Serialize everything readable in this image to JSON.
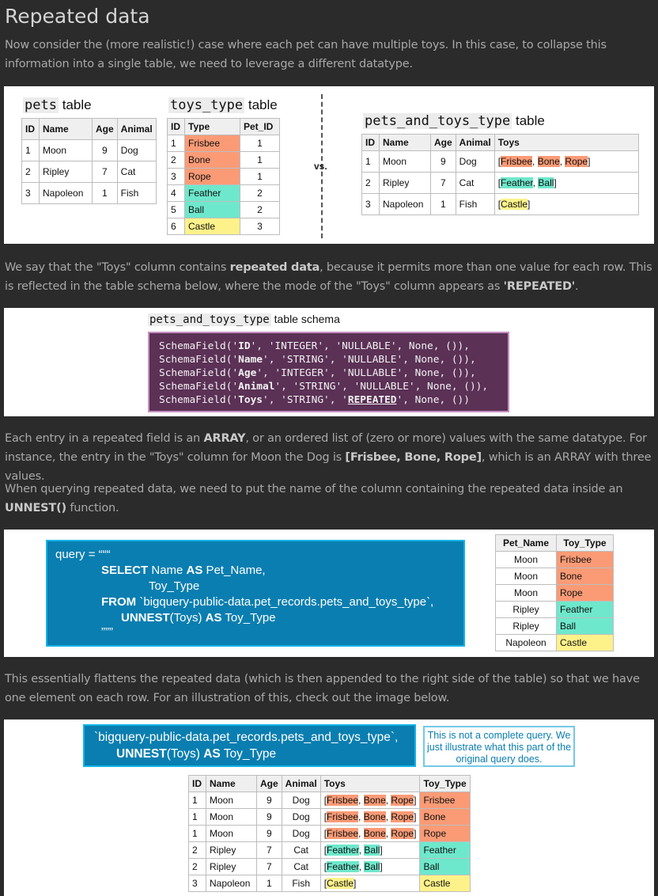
{
  "title": "Repeated data",
  "intro": "Now consider the (more realistic!) case where each pet can have multiple toys. In this case, to collapse this information into a single table, we need to leverage a different datatype.",
  "fig1": {
    "pets_caption_code": "pets",
    "toys_caption_code": "toys_type",
    "table_word": "table",
    "vs": "vs.",
    "result_caption_code": "pets_and_toys_type",
    "pets_headers": [
      "ID",
      "Name",
      "Age",
      "Animal"
    ],
    "pets_rows": [
      [
        "1",
        "Moon",
        "9",
        "Dog"
      ],
      [
        "2",
        "Ripley",
        "7",
        "Cat"
      ],
      [
        "3",
        "Napoleon",
        "1",
        "Fish"
      ]
    ],
    "toys_headers": [
      "ID",
      "Type",
      "Pet_ID"
    ],
    "toys_rows": [
      [
        "1",
        "Frisbee",
        "1"
      ],
      [
        "2",
        "Bone",
        "1"
      ],
      [
        "3",
        "Rope",
        "1"
      ],
      [
        "4",
        "Feather",
        "2"
      ],
      [
        "5",
        "Ball",
        "2"
      ],
      [
        "6",
        "Castle",
        "3"
      ]
    ],
    "result_headers": [
      "ID",
      "Name",
      "Age",
      "Animal",
      "Toys"
    ],
    "result_rows": [
      [
        "1",
        "Moon",
        "9",
        "Dog"
      ],
      [
        "2",
        "Ripley",
        "7",
        "Cat"
      ],
      [
        "3",
        "Napoleon",
        "1",
        "Fish"
      ]
    ],
    "result_toys": [
      [
        "Frisbee",
        "Bone",
        "Rope"
      ],
      [
        "Feather",
        "Ball"
      ],
      [
        "Castle"
      ]
    ]
  },
  "para2": {
    "before": "We say that the \"Toys\" column contains ",
    "bold1": "repeated data",
    "middle": ", because it permits more than one value for each row. This is reflected in the table schema below, where the mode of the \"Toys\" column appears as ",
    "bold2": "'REPEATED'",
    "after": "."
  },
  "schema": {
    "caption_code": "pets_and_toys_type",
    "caption_text": "table schema",
    "fields": [
      {
        "name": "ID",
        "type": "INTEGER",
        "mode": "NULLABLE"
      },
      {
        "name": "Name",
        "type": "STRING",
        "mode": "NULLABLE"
      },
      {
        "name": "Age",
        "type": "INTEGER",
        "mode": "NULLABLE"
      },
      {
        "name": "Animal",
        "type": "STRING",
        "mode": "NULLABLE"
      },
      {
        "name": "Toys",
        "type": "STRING",
        "mode": "REPEATED"
      }
    ]
  },
  "para3": {
    "before": "Each entry in a repeated field is an ",
    "bold1": "ARRAY",
    "middle": ", or an ordered list of (zero or more) values with the same datatype. For instance, the entry in the \"Toys\" column for Moon the Dog is ",
    "bold2": "[Frisbee, Bone, Rope]",
    "after": ", which is an ARRAY with three values."
  },
  "para4": {
    "before": "When querying repeated data, we need to put the name of the column containing the repeated data inside an ",
    "bold1": "UNNEST()",
    "after": " function."
  },
  "query": {
    "l1": "query = “““",
    "select_kw": "SELECT",
    "l2_rest": " Name ",
    "as_kw": "AS",
    "l2_end": " Pet_Name,",
    "l3": "Toy_Type",
    "from_kw": "FROM",
    "l4_rest": " `bigquery-public-data.pet_records.pets_and_toys_type`,",
    "unnest_kw": "UNNEST",
    "l5_mid": "(Toys) ",
    "l5_end": " Toy_Type",
    "l6": "”””"
  },
  "query_result": {
    "headers": [
      "Pet_Name",
      "Toy_Type"
    ],
    "rows": [
      [
        "Moon",
        "Frisbee"
      ],
      [
        "Moon",
        "Bone"
      ],
      [
        "Moon",
        "Rope"
      ],
      [
        "Ripley",
        "Feather"
      ],
      [
        "Ripley",
        "Ball"
      ],
      [
        "Napoleon",
        "Castle"
      ]
    ]
  },
  "para5": "This essentially flattens the repeated data (which is then appended to the right side of the table) so that we have one element on each row. For an illustration of this, check out the image below.",
  "fig4": {
    "line1": "`bigquery-public-data.pet_records.pets_and_toys_type`,",
    "unnest_kw": "UNNEST",
    "l2_mid": "(Toys) ",
    "as_kw": "AS",
    "l2_end": " Toy_Type",
    "note": "This is not a complete query. We just illustrate what this part of the original query does.",
    "headers": [
      "ID",
      "Name",
      "Age",
      "Animal",
      "Toys",
      "Toy_Type"
    ],
    "rows": [
      [
        "1",
        "Moon",
        "9",
        "Dog"
      ],
      [
        "1",
        "Moon",
        "9",
        "Dog"
      ],
      [
        "1",
        "Moon",
        "9",
        "Dog"
      ],
      [
        "2",
        "Ripley",
        "7",
        "Cat"
      ],
      [
        "2",
        "Ripley",
        "7",
        "Cat"
      ],
      [
        "3",
        "Napoleon",
        "1",
        "Fish"
      ]
    ],
    "toys": [
      [
        "Frisbee",
        "Bone",
        "Rope"
      ],
      [
        "Frisbee",
        "Bone",
        "Rope"
      ],
      [
        "Frisbee",
        "Bone",
        "Rope"
      ],
      [
        "Feather",
        "Ball"
      ],
      [
        "Feather",
        "Ball"
      ],
      [
        "Castle"
      ]
    ],
    "toy_type": [
      "Frisbee",
      "Bone",
      "Rope",
      "Feather",
      "Ball",
      "Castle"
    ]
  },
  "toy_colors": {
    "Frisbee": "#fa9b76",
    "Bone": "#fa9b76",
    "Rope": "#fa9b76",
    "Feather": "#6ee8cc",
    "Ball": "#6ee8cc",
    "Castle": "#fdf28a"
  }
}
